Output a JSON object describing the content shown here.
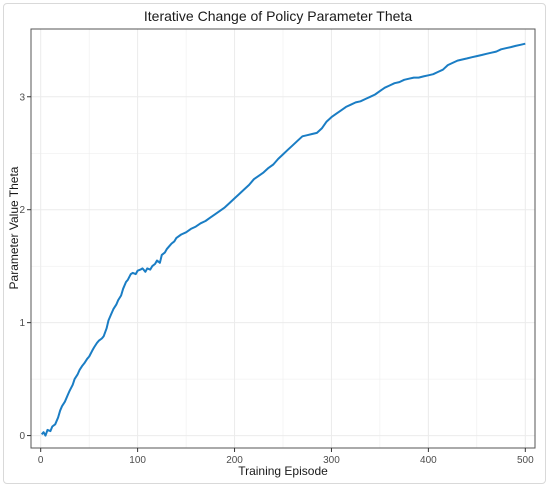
{
  "chart_data": {
    "type": "line",
    "title": "Iterative Change of Policy Parameter Theta",
    "xlabel": "Training Episode",
    "ylabel": "Parameter Value Theta",
    "xlim": [
      -10,
      510
    ],
    "ylim": [
      -0.11,
      3.6
    ],
    "x_ticks": [
      0,
      100,
      200,
      300,
      400,
      500
    ],
    "y_ticks": [
      0,
      1,
      2,
      3
    ],
    "grid": true,
    "legend": "none",
    "colors": {
      "line": "#1a7dc4",
      "grid": "#ebebeb",
      "axis": "#333333",
      "panel_border": "#555555"
    },
    "series": [
      {
        "x": [
          1,
          3,
          5,
          7,
          10,
          12,
          15,
          18,
          20,
          22,
          25,
          28,
          30,
          33,
          35,
          38,
          40,
          43,
          45,
          48,
          50,
          53,
          55,
          58,
          60,
          63,
          65,
          68,
          70,
          73,
          75,
          78,
          80,
          83,
          85,
          88,
          90,
          93,
          95,
          98,
          100,
          103,
          105,
          108,
          110,
          113,
          115,
          118,
          120,
          123,
          125,
          128,
          130,
          133,
          135,
          138,
          140,
          145,
          150,
          155,
          160,
          165,
          170,
          175,
          180,
          185,
          190,
          195,
          200,
          205,
          210,
          215,
          220,
          225,
          230,
          235,
          240,
          245,
          250,
          255,
          260,
          265,
          270,
          275,
          280,
          285,
          290,
          295,
          300,
          305,
          310,
          315,
          320,
          325,
          330,
          335,
          340,
          345,
          350,
          355,
          360,
          365,
          370,
          375,
          380,
          385,
          390,
          395,
          400,
          405,
          410,
          415,
          420,
          425,
          430,
          435,
          440,
          445,
          450,
          455,
          460,
          465,
          470,
          475,
          480,
          485,
          490,
          495,
          500
        ],
        "y": [
          0.01,
          0.03,
          0.0,
          0.05,
          0.04,
          0.08,
          0.1,
          0.16,
          0.22,
          0.26,
          0.3,
          0.36,
          0.4,
          0.45,
          0.5,
          0.54,
          0.58,
          0.62,
          0.64,
          0.68,
          0.7,
          0.75,
          0.78,
          0.82,
          0.84,
          0.86,
          0.88,
          0.95,
          1.02,
          1.08,
          1.12,
          1.16,
          1.2,
          1.24,
          1.3,
          1.36,
          1.38,
          1.43,
          1.44,
          1.43,
          1.46,
          1.47,
          1.48,
          1.45,
          1.48,
          1.47,
          1.5,
          1.52,
          1.55,
          1.53,
          1.6,
          1.62,
          1.65,
          1.68,
          1.7,
          1.72,
          1.75,
          1.78,
          1.8,
          1.83,
          1.85,
          1.88,
          1.9,
          1.93,
          1.96,
          1.99,
          2.02,
          2.06,
          2.1,
          2.14,
          2.18,
          2.22,
          2.27,
          2.3,
          2.33,
          2.37,
          2.4,
          2.45,
          2.49,
          2.53,
          2.57,
          2.61,
          2.65,
          2.66,
          2.67,
          2.68,
          2.72,
          2.78,
          2.82,
          2.85,
          2.88,
          2.91,
          2.93,
          2.95,
          2.96,
          2.98,
          3.0,
          3.02,
          3.05,
          3.08,
          3.1,
          3.12,
          3.13,
          3.15,
          3.16,
          3.17,
          3.17,
          3.18,
          3.19,
          3.2,
          3.22,
          3.24,
          3.28,
          3.3,
          3.32,
          3.33,
          3.34,
          3.35,
          3.36,
          3.37,
          3.38,
          3.39,
          3.4,
          3.42,
          3.43,
          3.44,
          3.45,
          3.46,
          3.47
        ]
      }
    ]
  }
}
